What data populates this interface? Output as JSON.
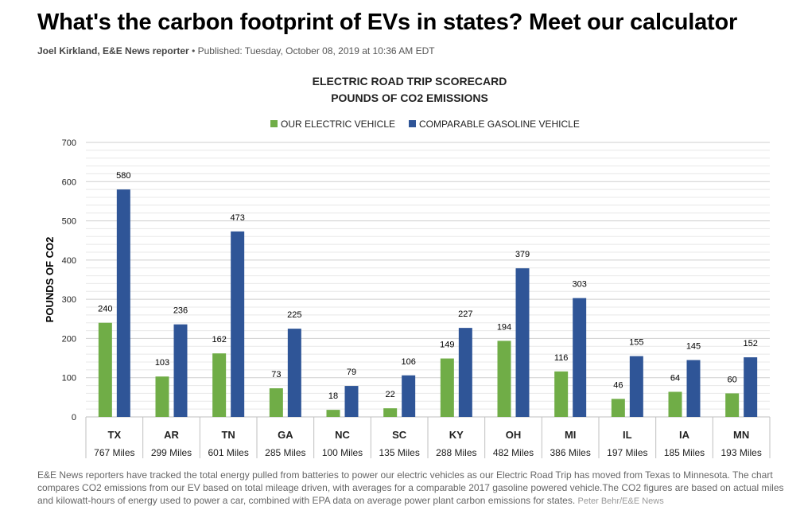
{
  "article": {
    "headline": "What's the carbon footprint of EVs in states? Meet our calculator",
    "author": "Joel Kirkland, E&E News reporter",
    "bullet": "•",
    "published": "Published: Tuesday, October 08, 2019 at 10:36 AM EDT",
    "caption": "E&E News reporters have tracked the total energy pulled from batteries to power our electric vehicles as our Electric Road Trip has moved from Texas to Minnesota. The chart compares CO2 emissions from our EV based on total mileage driven, with averages for a comparable 2017 gasoline powered vehicle.The CO2 figures are based on actual miles and kilowatt-hours of energy used to power a car, combined with EPA data on average power plant carbon emissions for states.",
    "credit": "Peter Behr/E&E News"
  },
  "chart_data": {
    "type": "bar",
    "title": "ELECTRIC ROAD TRIP SCORECARD",
    "subtitle": "POUNDS OF CO2 EMISSIONS",
    "ylabel": "POUNDS OF CO2",
    "ylim": [
      0,
      700
    ],
    "yticks": [
      0,
      100,
      200,
      300,
      400,
      500,
      600,
      700
    ],
    "grid": true,
    "legend_position": "top",
    "categories": [
      "TX",
      "AR",
      "TN",
      "GA",
      "NC",
      "SC",
      "KY",
      "OH",
      "MI",
      "IL",
      "IA",
      "MN"
    ],
    "miles": [
      "767 Miles",
      "299 Miles",
      "601 Miles",
      "285 Miles",
      "100 Miles",
      "135 Miles",
      "288 Miles",
      "482 Miles",
      "386 Miles",
      "197 Miles",
      "185 Miles",
      "193 Miles"
    ],
    "series": [
      {
        "name": "OUR ELECTRIC VEHICLE",
        "color": "#70ad47",
        "values": [
          240,
          103,
          162,
          73,
          18,
          22,
          149,
          194,
          116,
          46,
          64,
          60
        ]
      },
      {
        "name": "COMPARABLE GASOLINE VEHICLE",
        "color": "#2f5597",
        "values": [
          580,
          236,
          473,
          225,
          79,
          106,
          227,
          379,
          303,
          155,
          145,
          152
        ]
      }
    ]
  }
}
